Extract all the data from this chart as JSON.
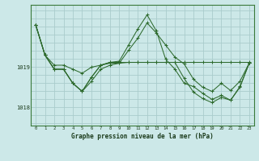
{
  "bg_color": "#cce8e8",
  "grid_color": "#aacccc",
  "line_color": "#2d6a2d",
  "marker_color": "#2d6a2d",
  "title": "Graphe pression niveau de la mer (hPa)",
  "xlim": [
    -0.5,
    23.5
  ],
  "ylim": [
    1017.55,
    1020.55
  ],
  "yticks": [
    1018,
    1019
  ],
  "xticks": [
    0,
    1,
    2,
    3,
    4,
    5,
    6,
    7,
    8,
    9,
    10,
    11,
    12,
    13,
    14,
    15,
    16,
    17,
    18,
    19,
    20,
    21,
    22,
    23
  ],
  "hgrid_vals": [
    1017.6,
    1017.8,
    1018.0,
    1018.2,
    1018.4,
    1018.6,
    1018.8,
    1019.0,
    1019.2,
    1019.4,
    1019.6,
    1019.8,
    1020.0,
    1020.2,
    1020.4
  ],
  "series": [
    [
      1020.05,
      1019.3,
      1019.05,
      1019.05,
      1018.95,
      1018.85,
      1019.0,
      1019.05,
      1019.1,
      1019.1,
      1019.12,
      1019.12,
      1019.12,
      1019.12,
      1019.12,
      1019.12,
      1019.12,
      1019.12,
      1019.12,
      1019.12,
      1019.12,
      1019.12,
      1019.12,
      1019.12
    ],
    [
      1020.05,
      1019.3,
      1018.95,
      1018.95,
      1018.6,
      1018.4,
      1018.65,
      1018.95,
      1019.05,
      1019.1,
      1019.42,
      1019.72,
      1020.1,
      1019.85,
      1019.55,
      1019.25,
      1019.08,
      1018.7,
      1018.5,
      1018.4,
      1018.6,
      1018.42,
      1018.65,
      1019.1
    ],
    [
      1020.05,
      1019.3,
      1018.95,
      1018.95,
      1018.6,
      1018.4,
      1018.75,
      1019.05,
      1019.12,
      1019.15,
      1019.55,
      1019.95,
      1020.3,
      1019.9,
      1019.2,
      1018.95,
      1018.6,
      1018.52,
      1018.35,
      1018.2,
      1018.3,
      1018.18,
      1018.5,
      1019.1
    ],
    [
      1020.05,
      1019.3,
      1018.95,
      1018.95,
      1018.6,
      1018.4,
      1018.75,
      1019.05,
      1019.12,
      1019.12,
      1019.12,
      1019.12,
      1019.12,
      1019.12,
      1019.12,
      1019.12,
      1018.72,
      1018.38,
      1018.22,
      1018.12,
      1018.25,
      1018.18,
      1018.52,
      1019.1
    ]
  ]
}
